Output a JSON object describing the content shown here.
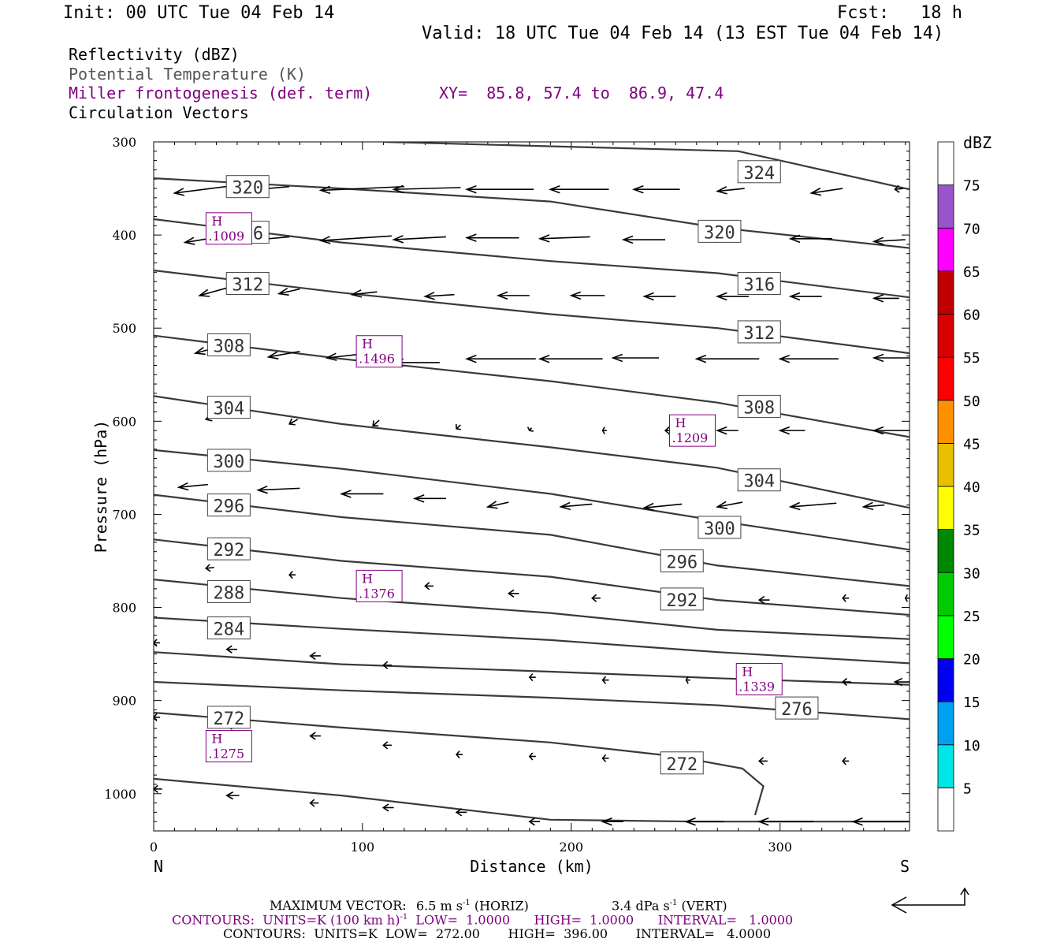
{
  "header": {
    "init": "Init: 00 UTC Tue 04 Feb 14",
    "fcst": "Fcst:   18 h",
    "valid": "Valid: 18 UTC Tue 04 Feb 14 (13 EST Tue 04 Feb 14)"
  },
  "legend": {
    "field1": "Reflectivity (dBZ)",
    "field2": "Potential Temperature (K)",
    "field3": "Miller frontogenesis (def. term)",
    "field4": "Circulation Vectors",
    "xy": "XY=  85.8, 57.4 to  86.9, 47.4"
  },
  "colors": {
    "theta": "#3a3a3a",
    "fronto": "#800080",
    "vector": "#000000"
  },
  "chart_data": {
    "type": "cross-section",
    "xlabel": "Distance (km)",
    "ylabel": "Pressure (hPa)",
    "x_ticks": [
      0,
      100,
      200,
      300
    ],
    "y_ticks": [
      300,
      400,
      500,
      600,
      700,
      800,
      900,
      1000
    ],
    "xlim": [
      0,
      362
    ],
    "ylim": [
      300,
      1040
    ],
    "y_reversed": true,
    "left_end": "N",
    "right_end": "S",
    "colorbar": {
      "title": "dBZ",
      "levels": [
        5,
        10,
        15,
        20,
        25,
        30,
        35,
        40,
        45,
        50,
        55,
        60,
        65,
        70,
        75
      ],
      "colors": [
        "#ffffff",
        "#00e5e5",
        "#00a0f0",
        "#0000f0",
        "#00ff00",
        "#00cc00",
        "#008800",
        "#ffff00",
        "#e8c000",
        "#ff9000",
        "#ff0000",
        "#d80000",
        "#c00000",
        "#ff00ff",
        "#9955cc",
        "#ffffff"
      ]
    },
    "theta_contours": [
      {
        "label": "324",
        "points": [
          [
            110,
            300
          ],
          [
            280,
            310
          ],
          [
            362,
            351
          ]
        ],
        "label_at": [
          290,
          332
        ]
      },
      {
        "label": "320",
        "points": [
          [
            0,
            339
          ],
          [
            90,
            350
          ],
          [
            190,
            364
          ],
          [
            270,
            392
          ],
          [
            362,
            414
          ]
        ],
        "label_at": [
          45,
          348
        ]
      },
      {
        "label": "320",
        "points": [],
        "label_at": [
          271,
          396
        ]
      },
      {
        "label": "316",
        "points": [
          [
            0,
            383
          ],
          [
            90,
            408
          ],
          [
            190,
            428
          ],
          [
            270,
            441
          ],
          [
            362,
            467
          ]
        ],
        "label_at": [
          45,
          397
        ]
      },
      {
        "label": "316",
        "points": [],
        "label_at": [
          290,
          452
        ]
      },
      {
        "label": "312",
        "points": [
          [
            0,
            438
          ],
          [
            90,
            462
          ],
          [
            190,
            485
          ],
          [
            270,
            500
          ],
          [
            362,
            527
          ]
        ],
        "label_at": [
          45,
          452
        ]
      },
      {
        "label": "312",
        "points": [],
        "label_at": [
          290,
          504
        ]
      },
      {
        "label": "308",
        "points": [
          [
            0,
            508
          ],
          [
            90,
            533
          ],
          [
            190,
            557
          ],
          [
            270,
            580
          ],
          [
            362,
            617
          ]
        ],
        "label_at": [
          36,
          518
        ]
      },
      {
        "label": "308",
        "points": [],
        "label_at": [
          290,
          584
        ]
      },
      {
        "label": "304",
        "points": [
          [
            0,
            573
          ],
          [
            90,
            603
          ],
          [
            190,
            628
          ],
          [
            270,
            650
          ],
          [
            362,
            693
          ]
        ],
        "label_at": [
          36,
          585
        ]
      },
      {
        "label": "304",
        "points": [],
        "label_at": [
          290,
          663
        ]
      },
      {
        "label": "300",
        "points": [
          [
            0,
            631
          ],
          [
            90,
            651
          ],
          [
            190,
            678
          ],
          [
            270,
            707
          ],
          [
            362,
            738
          ]
        ],
        "label_at": [
          36,
          642
        ]
      },
      {
        "label": "300",
        "points": [],
        "label_at": [
          271,
          714
        ]
      },
      {
        "label": "296",
        "points": [
          [
            0,
            679
          ],
          [
            90,
            703
          ],
          [
            190,
            722
          ],
          [
            270,
            755
          ],
          [
            362,
            777
          ]
        ],
        "label_at": [
          36,
          690
        ]
      },
      {
        "label": "296",
        "points": [],
        "label_at": [
          253,
          750
        ]
      },
      {
        "label": "292",
        "points": [
          [
            0,
            727
          ],
          [
            90,
            750
          ],
          [
            190,
            767
          ],
          [
            270,
            792
          ],
          [
            362,
            808
          ]
        ],
        "label_at": [
          36,
          737
        ]
      },
      {
        "label": "292",
        "points": [],
        "label_at": [
          253,
          791
        ]
      },
      {
        "label": "288",
        "points": [
          [
            0,
            770
          ],
          [
            90,
            790
          ],
          [
            190,
            806
          ],
          [
            270,
            824
          ],
          [
            362,
            834
          ]
        ],
        "label_at": [
          36,
          783
        ]
      },
      {
        "label": "284",
        "points": [
          [
            0,
            811
          ],
          [
            90,
            823
          ],
          [
            190,
            835
          ],
          [
            270,
            848
          ],
          [
            362,
            860
          ]
        ],
        "label_at": [
          36,
          822
        ]
      },
      {
        "label": "",
        "points": [
          [
            0,
            848
          ],
          [
            90,
            861
          ],
          [
            190,
            869
          ],
          [
            270,
            876
          ],
          [
            362,
            883
          ]
        ],
        "label_at": null
      },
      {
        "label": "276",
        "points": [
          [
            0,
            880
          ],
          [
            90,
            889
          ],
          [
            190,
            897
          ],
          [
            270,
            905
          ],
          [
            362,
            920
          ]
        ],
        "label_at": [
          308,
          908
        ]
      },
      {
        "label": "272",
        "points": [
          [
            0,
            913
          ],
          [
            90,
            929
          ],
          [
            190,
            945
          ],
          [
            250,
            960
          ],
          [
            282,
            973
          ],
          [
            292,
            992
          ],
          [
            288,
            1023
          ]
        ],
        "label_at": [
          36,
          918
        ]
      },
      {
        "label": "272",
        "points": [],
        "label_at": [
          253,
          967
        ]
      },
      {
        "label": "",
        "points": [
          [
            0,
            984
          ],
          [
            90,
            1002
          ],
          [
            190,
            1028
          ],
          [
            260,
            1030
          ],
          [
            362,
            1030
          ]
        ],
        "label_at": null
      }
    ],
    "fronto_maxima": [
      {
        "symbol": "H",
        "value": ".1009",
        "at": [
          36,
          393
        ]
      },
      {
        "symbol": "H",
        "value": ".1496",
        "at": [
          108,
          525
        ]
      },
      {
        "symbol": "H",
        "value": ".1209",
        "at": [
          258,
          610
        ]
      },
      {
        "symbol": "H",
        "value": ".1376",
        "at": [
          108,
          777
        ]
      },
      {
        "symbol": "H",
        "value": ".1339",
        "at": [
          290,
          877
        ]
      },
      {
        "symbol": "H",
        "value": ".1275",
        "at": [
          36,
          949
        ]
      }
    ],
    "vectors": [
      [
        10,
        355,
        35,
        10
      ],
      [
        40,
        353,
        25,
        5
      ],
      [
        80,
        352,
        40,
        4
      ],
      [
        115,
        351,
        32,
        2
      ],
      [
        150,
        351,
        32,
        0
      ],
      [
        190,
        351,
        28,
        0
      ],
      [
        230,
        351,
        22,
        0
      ],
      [
        270,
        353,
        13,
        3
      ],
      [
        315,
        355,
        15,
        5
      ],
      [
        355,
        351,
        4,
        1
      ],
      [
        15,
        408,
        22,
        8
      ],
      [
        50,
        405,
        15,
        3
      ],
      [
        80,
        406,
        34,
        5
      ],
      [
        115,
        405,
        25,
        3
      ],
      [
        150,
        403,
        25,
        0
      ],
      [
        185,
        404,
        24,
        2
      ],
      [
        225,
        405,
        20,
        0
      ],
      [
        265,
        404,
        16,
        0
      ],
      [
        305,
        404,
        20,
        0
      ],
      [
        345,
        407,
        15,
        2
      ],
      [
        22,
        465,
        16,
        10
      ],
      [
        60,
        463,
        10,
        5
      ],
      [
        95,
        464,
        12,
        3
      ],
      [
        130,
        466,
        14,
        2
      ],
      [
        165,
        465,
        15,
        0
      ],
      [
        200,
        465,
        16,
        0
      ],
      [
        235,
        466,
        15,
        0
      ],
      [
        270,
        466,
        15,
        0
      ],
      [
        305,
        466,
        15,
        0
      ],
      [
        345,
        468,
        12,
        0
      ],
      [
        20,
        527,
        13,
        8
      ],
      [
        55,
        531,
        15,
        6
      ],
      [
        83,
        532,
        24,
        6
      ],
      [
        115,
        537,
        22,
        0
      ],
      [
        150,
        533,
        33,
        0
      ],
      [
        185,
        533,
        30,
        0
      ],
      [
        220,
        532,
        22,
        0
      ],
      [
        260,
        533,
        30,
        0
      ],
      [
        300,
        533,
        28,
        0
      ],
      [
        345,
        532,
        28,
        0
      ],
      [
        25,
        598,
        5,
        4
      ],
      [
        65,
        603,
        4,
        5
      ],
      [
        105,
        605,
        3,
        6
      ],
      [
        145,
        608,
        2,
        4
      ],
      [
        180,
        610,
        1,
        3
      ],
      [
        215,
        610,
        2,
        0
      ],
      [
        245,
        610,
        4,
        0
      ],
      [
        270,
        610,
        10,
        0
      ],
      [
        300,
        610,
        12,
        0
      ],
      [
        345,
        610,
        24,
        0
      ],
      [
        12,
        671,
        14,
        3
      ],
      [
        50,
        674,
        20,
        2
      ],
      [
        90,
        678,
        20,
        0
      ],
      [
        125,
        683,
        15,
        0
      ],
      [
        160,
        692,
        10,
        5
      ],
      [
        195,
        692,
        15,
        3
      ],
      [
        235,
        693,
        18,
        4
      ],
      [
        270,
        692,
        12,
        5
      ],
      [
        305,
        692,
        22,
        4
      ],
      [
        340,
        692,
        10,
        2
      ],
      [
        25,
        758,
        4,
        1
      ],
      [
        65,
        765,
        3,
        0
      ],
      [
        100,
        775,
        4,
        0
      ],
      [
        130,
        777,
        4,
        0
      ],
      [
        170,
        785,
        5,
        0
      ],
      [
        210,
        790,
        4,
        0
      ],
      [
        250,
        790,
        4,
        0
      ],
      [
        290,
        792,
        5,
        0
      ],
      [
        330,
        790,
        3,
        0
      ],
      [
        360,
        790,
        2,
        0
      ],
      [
        0,
        838,
        3,
        0
      ],
      [
        35,
        845,
        5,
        0
      ],
      [
        75,
        852,
        5,
        0
      ],
      [
        110,
        862,
        4,
        0
      ],
      [
        180,
        875,
        3,
        0
      ],
      [
        215,
        878,
        3,
        0
      ],
      [
        255,
        878,
        2,
        0
      ],
      [
        295,
        880,
        4,
        0
      ],
      [
        330,
        880,
        4,
        0
      ],
      [
        355,
        880,
        7,
        0
      ],
      [
        0,
        918,
        3,
        0
      ],
      [
        35,
        927,
        5,
        0
      ],
      [
        75,
        938,
        5,
        0
      ],
      [
        110,
        948,
        4,
        0
      ],
      [
        145,
        958,
        3,
        0
      ],
      [
        180,
        960,
        3,
        0
      ],
      [
        215,
        962,
        3,
        0
      ],
      [
        255,
        965,
        3,
        0
      ],
      [
        290,
        965,
        4,
        0
      ],
      [
        330,
        965,
        3,
        0
      ],
      [
        0,
        995,
        4,
        0
      ],
      [
        35,
        1002,
        6,
        0
      ],
      [
        75,
        1010,
        4,
        0
      ],
      [
        110,
        1015,
        5,
        0
      ],
      [
        145,
        1020,
        5,
        0
      ],
      [
        180,
        1030,
        5,
        0
      ],
      [
        215,
        1030,
        10,
        0
      ],
      [
        255,
        1030,
        18,
        0
      ],
      [
        290,
        1030,
        26,
        0
      ],
      [
        335,
        1030,
        30,
        0
      ]
    ]
  },
  "footer": {
    "max_vector_label": "MAXIMUM VECTOR:",
    "max_horiz": "6.5 m s",
    "horiz_tag": "(HORIZ)",
    "max_vert": "3.4 dPa s",
    "vert_tag": "(VERT)",
    "exp": "-1",
    "contours1": "CONTOURS:  UNITS=K (100 km h)",
    "contours1_rest": "  LOW=  1.0000      HIGH=  1.0000      INTERVAL=   1.0000",
    "contours2": "CONTOURS:  UNITS=K  LOW=  272.00       HIGH=  396.00       INTERVAL=   4.0000"
  }
}
